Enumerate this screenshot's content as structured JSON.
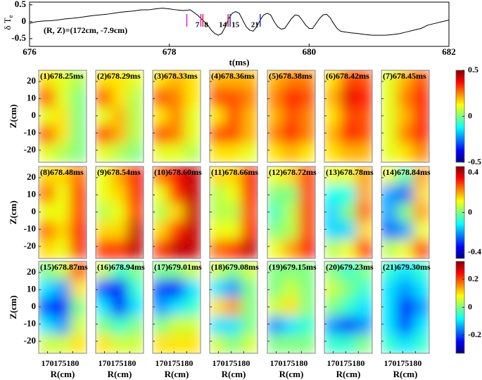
{
  "chart_data": [
    {
      "type": "line",
      "xlabel": "t(ms)",
      "ylabel": "δ T",
      "ylabel_sub": "e",
      "annotation": "(R, Z)=(172cm, -7.9cm)",
      "xlim": [
        676,
        682
      ],
      "ylim": [
        -0.73,
        0.58
      ],
      "xticks": [
        676,
        678,
        680,
        682
      ],
      "yticks": [
        0.5,
        0,
        -0.5
      ],
      "x": [
        676.0,
        676.1,
        676.2,
        676.3,
        676.4,
        676.5,
        676.6,
        676.7,
        676.8,
        676.9,
        677.0,
        677.1,
        677.2,
        677.3,
        677.4,
        677.5,
        677.6,
        677.7,
        677.8,
        677.9,
        678.0,
        678.1,
        678.2,
        678.3,
        678.4,
        678.5,
        678.55,
        678.6,
        678.65,
        678.7,
        678.75,
        678.8,
        678.85,
        678.9,
        678.95,
        679.0,
        679.05,
        679.1,
        679.15,
        679.2,
        679.25,
        679.3,
        679.35,
        679.4,
        679.45,
        679.5,
        679.55,
        679.6,
        679.65,
        679.7,
        679.75,
        679.8,
        679.85,
        679.9,
        679.95,
        680.0,
        680.05,
        680.1,
        680.15,
        680.2,
        680.25,
        680.3,
        680.35,
        680.4,
        680.45,
        680.5,
        680.6,
        680.7,
        680.8,
        680.9,
        681.0,
        681.1,
        681.2,
        681.3,
        681.4,
        681.5,
        681.6,
        681.7,
        681.8,
        681.9,
        682.0
      ],
      "series": [
        {
          "color": "#000000",
          "values": [
            -0.05,
            0.0,
            0.02,
            0.03,
            0.05,
            0.08,
            0.1,
            0.12,
            0.15,
            0.18,
            0.2,
            0.22,
            0.25,
            0.28,
            0.3,
            0.32,
            0.35,
            0.35,
            0.38,
            0.4,
            0.38,
            0.35,
            0.33,
            0.35,
            0.2,
            0.0,
            -0.1,
            -0.25,
            -0.35,
            -0.4,
            -0.35,
            -0.15,
            0.1,
            0.25,
            0.3,
            0.25,
            0.05,
            -0.15,
            -0.25,
            -0.28,
            -0.15,
            0.05,
            0.2,
            0.25,
            0.2,
            0.0,
            -0.15,
            -0.22,
            -0.2,
            -0.05,
            0.1,
            0.2,
            0.18,
            0.05,
            -0.1,
            -0.2,
            -0.2,
            -0.05,
            0.1,
            0.2,
            0.22,
            0.12,
            -0.05,
            -0.2,
            -0.28,
            -0.3,
            -0.33,
            -0.35,
            -0.38,
            -0.4,
            -0.4,
            -0.4,
            -0.38,
            -0.35,
            -0.3,
            -0.25,
            -0.2,
            -0.1,
            -0.05,
            0.0,
            0.05
          ]
        }
      ],
      "markers": [
        {
          "x": 678.25,
          "color": "#e020e0"
        },
        {
          "x": 678.45,
          "label": "7",
          "color": "#e020e0"
        },
        {
          "x": 678.48,
          "label": "8",
          "color": "#e02020"
        },
        {
          "x": 678.84,
          "label": "14",
          "color": "#e02020"
        },
        {
          "x": 678.87,
          "label": "15",
          "color": "#2030e0"
        },
        {
          "x": 679.3,
          "label": "21",
          "color": "#2030e0"
        }
      ]
    },
    {
      "type": "heatmap",
      "ylabel": "Z(cm)",
      "xlim": [
        166.5,
        185.5
      ],
      "ylim": [
        -27,
        26.5
      ],
      "yticks": [
        20,
        10,
        0,
        -10,
        -20
      ],
      "clim": [
        -0.5,
        0.5
      ],
      "cticks": [
        0.5,
        0,
        -0.5
      ],
      "colormap": "jet",
      "panels": [
        {
          "title": "(1)678.25ms",
          "z": [
            [
              0.15,
              0.1,
              0.05
            ],
            [
              0.3,
              0.1,
              0.0
            ],
            [
              0.1,
              0.15,
              0.0
            ],
            [
              0.3,
              0.15,
              0.0
            ],
            [
              0.1,
              0.05,
              0.0
            ]
          ]
        },
        {
          "title": "(2)678.29ms",
          "z": [
            [
              0.15,
              0.15,
              0.1
            ],
            [
              0.3,
              0.15,
              0.05
            ],
            [
              0.1,
              0.2,
              0.05
            ],
            [
              0.32,
              0.2,
              0.05
            ],
            [
              0.1,
              0.05,
              0.0
            ]
          ]
        },
        {
          "title": "(3)678.33ms",
          "z": [
            [
              0.15,
              0.2,
              0.15
            ],
            [
              0.3,
              0.25,
              0.15
            ],
            [
              0.15,
              0.25,
              0.1
            ],
            [
              0.3,
              0.25,
              0.1
            ],
            [
              0.1,
              0.1,
              0.05
            ]
          ]
        },
        {
          "title": "(4)678.36ms",
          "z": [
            [
              0.2,
              0.2,
              0.2
            ],
            [
              0.3,
              0.3,
              0.25
            ],
            [
              0.15,
              0.3,
              0.2
            ],
            [
              0.3,
              0.3,
              0.2
            ],
            [
              0.15,
              0.15,
              0.1
            ]
          ]
        },
        {
          "title": "(5)678.38ms",
          "z": [
            [
              0.2,
              0.25,
              0.25
            ],
            [
              0.25,
              0.35,
              0.3
            ],
            [
              0.2,
              0.3,
              0.25
            ],
            [
              0.25,
              0.35,
              0.25
            ],
            [
              0.15,
              0.2,
              0.15
            ]
          ]
        },
        {
          "title": "(6)678.42ms",
          "z": [
            [
              0.15,
              0.3,
              0.3
            ],
            [
              0.2,
              0.4,
              0.35
            ],
            [
              0.15,
              0.3,
              0.3
            ],
            [
              0.2,
              0.35,
              0.3
            ],
            [
              0.15,
              0.2,
              0.2
            ]
          ]
        },
        {
          "title": "(7)678.45ms",
          "z": [
            [
              0.1,
              0.2,
              0.3
            ],
            [
              0.1,
              0.25,
              0.35
            ],
            [
              0.1,
              0.2,
              0.35
            ],
            [
              0.1,
              0.25,
              0.35
            ],
            [
              0.1,
              0.15,
              0.25
            ]
          ]
        }
      ]
    },
    {
      "type": "heatmap",
      "ylabel": "Z(cm)",
      "xlim": [
        166.5,
        185.5
      ],
      "ylim": [
        -27,
        26.5
      ],
      "yticks": [
        20,
        10,
        0,
        -10,
        -20
      ],
      "clim": [
        -0.46,
        0.46
      ],
      "cticks": [
        0.4,
        0,
        -0.4
      ],
      "colormap": "jet",
      "panels": [
        {
          "title": "(8)678.48ms",
          "z": [
            [
              0.15,
              0.15,
              0.25
            ],
            [
              0.25,
              0.1,
              0.3
            ],
            [
              0.1,
              0.1,
              0.3
            ],
            [
              0.25,
              0.15,
              0.35
            ],
            [
              0.15,
              0.1,
              0.35
            ]
          ]
        },
        {
          "title": "(9)678.54ms",
          "z": [
            [
              0.1,
              0.2,
              0.35
            ],
            [
              0.1,
              0.15,
              0.35
            ],
            [
              0.05,
              0.1,
              0.3
            ],
            [
              0.15,
              0.15,
              0.4
            ],
            [
              0.3,
              0.3,
              0.4
            ]
          ]
        },
        {
          "title": "(10)678.60ms",
          "z": [
            [
              0.25,
              0.35,
              0.4
            ],
            [
              0.1,
              0.3,
              0.4
            ],
            [
              0.05,
              0.15,
              0.4
            ],
            [
              0.15,
              0.3,
              0.4
            ],
            [
              0.3,
              0.4,
              0.4
            ]
          ]
        },
        {
          "title": "(11)678.66ms",
          "z": [
            [
              0.15,
              0.15,
              0.35
            ],
            [
              0.05,
              0.1,
              0.35
            ],
            [
              0.05,
              0.05,
              0.3
            ],
            [
              0.1,
              0.1,
              0.35
            ],
            [
              0.25,
              0.3,
              0.4
            ]
          ]
        },
        {
          "title": "(12)678.72ms",
          "z": [
            [
              0.1,
              0.15,
              0.3
            ],
            [
              0.0,
              0.0,
              0.3
            ],
            [
              -0.05,
              0.05,
              0.3
            ],
            [
              0.0,
              0.05,
              0.3
            ],
            [
              0.1,
              0.2,
              0.35
            ]
          ]
        },
        {
          "title": "(13)678.78ms",
          "z": [
            [
              0.1,
              0.1,
              0.2
            ],
            [
              -0.1,
              -0.1,
              0.2
            ],
            [
              -0.15,
              0.0,
              0.25
            ],
            [
              -0.15,
              -0.15,
              0.15
            ],
            [
              0.05,
              0.1,
              0.3
            ]
          ]
        },
        {
          "title": "(14)678.84ms",
          "z": [
            [
              0.1,
              -0.05,
              0.2
            ],
            [
              -0.2,
              -0.25,
              0.15
            ],
            [
              -0.2,
              0.0,
              0.2
            ],
            [
              -0.25,
              -0.2,
              0.1
            ],
            [
              0.05,
              0.1,
              0.3
            ]
          ]
        }
      ]
    },
    {
      "type": "heatmap",
      "ylabel": "Z(cm)",
      "xlabel": "R(cm)",
      "xlim": [
        166.5,
        185.5
      ],
      "ylim": [
        -27,
        26.5
      ],
      "xticks": [
        170,
        175,
        180
      ],
      "yticks": [
        20,
        10,
        0,
        -10,
        -20
      ],
      "clim": [
        -0.33,
        0.33
      ],
      "cticks": [
        0.2,
        0,
        -0.2
      ],
      "colormap": "jet",
      "panels": [
        {
          "title": "(15)678.87ms",
          "z": [
            [
              0.0,
              0.05,
              0.2
            ],
            [
              -0.1,
              -0.15,
              0.1
            ],
            [
              -0.2,
              -0.25,
              0.0
            ],
            [
              -0.1,
              -0.15,
              0.05
            ],
            [
              0.05,
              0.05,
              0.1
            ]
          ]
        },
        {
          "title": "(16)678.94ms",
          "z": [
            [
              0.05,
              -0.05,
              0.0
            ],
            [
              -0.2,
              -0.25,
              -0.05
            ],
            [
              -0.1,
              -0.25,
              -0.1
            ],
            [
              0.0,
              -0.05,
              0.0
            ],
            [
              0.1,
              0.05,
              0.05
            ]
          ]
        },
        {
          "title": "(17)679.01ms",
          "z": [
            [
              0.0,
              0.0,
              0.05
            ],
            [
              -0.2,
              -0.25,
              -0.1
            ],
            [
              -0.15,
              -0.1,
              -0.05
            ],
            [
              0.0,
              0.05,
              0.05
            ],
            [
              0.1,
              0.1,
              0.1
            ]
          ]
        },
        {
          "title": "(18)679.08ms",
          "z": [
            [
              0.05,
              0.0,
              0.05
            ],
            [
              -0.1,
              -0.15,
              0.0
            ],
            [
              0.1,
              0.15,
              0.0
            ],
            [
              -0.1,
              -0.1,
              0.0
            ],
            [
              0.05,
              0.0,
              0.05
            ]
          ]
        },
        {
          "title": "(19)679.15ms",
          "z": [
            [
              0.0,
              0.0,
              0.0
            ],
            [
              0.0,
              0.05,
              0.0
            ],
            [
              0.05,
              0.1,
              0.0
            ],
            [
              -0.15,
              -0.1,
              -0.05
            ],
            [
              0.0,
              0.0,
              0.0
            ]
          ]
        },
        {
          "title": "(20)679.23ms",
          "z": [
            [
              0.0,
              -0.05,
              0.0
            ],
            [
              0.05,
              0.0,
              -0.05
            ],
            [
              0.0,
              -0.05,
              -0.1
            ],
            [
              -0.15,
              -0.2,
              -0.15
            ],
            [
              -0.05,
              -0.05,
              0.0
            ]
          ]
        },
        {
          "title": "(21)679.30ms",
          "z": [
            [
              -0.05,
              -0.1,
              -0.05
            ],
            [
              -0.1,
              -0.15,
              -0.1
            ],
            [
              -0.1,
              -0.25,
              -0.15
            ],
            [
              -0.1,
              -0.2,
              -0.1
            ],
            [
              -0.05,
              -0.1,
              -0.05
            ]
          ]
        }
      ]
    }
  ]
}
